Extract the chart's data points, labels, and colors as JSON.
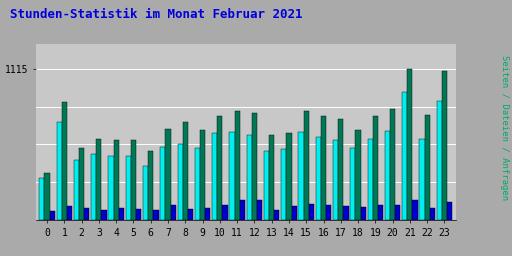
{
  "title": "Stunden-Statistik im Monat Februar 2021",
  "title_color": "#0000dd",
  "ylabel": "Seiten / Dateien / Anfragen",
  "ylabel_color": "#00aa66",
  "xlabel_labels": [
    "0",
    "1",
    "2",
    "3",
    "4",
    "5",
    "6",
    "7",
    "8",
    "9",
    "10",
    "11",
    "12",
    "13",
    "14",
    "15",
    "16",
    "17",
    "18",
    "19",
    "20",
    "21",
    "22",
    "23"
  ],
  "ytick_label": "1115",
  "ylim": [
    0,
    1300
  ],
  "yline": 1115,
  "outer_bg": "#aaaaaa",
  "plot_bg": "#c8c8c8",
  "bar_width": 0.3,
  "color_cyan": "#00eeee",
  "color_green": "#007755",
  "color_blue": "#0000cc",
  "cyan": [
    310,
    720,
    445,
    490,
    470,
    470,
    400,
    540,
    560,
    530,
    640,
    650,
    630,
    510,
    525,
    650,
    610,
    590,
    530,
    600,
    655,
    940,
    600,
    880
  ],
  "green": [
    350,
    870,
    530,
    600,
    590,
    590,
    510,
    670,
    720,
    660,
    770,
    800,
    785,
    625,
    645,
    800,
    765,
    745,
    660,
    765,
    820,
    1115,
    775,
    1095
  ],
  "blue": [
    68,
    105,
    92,
    75,
    90,
    80,
    75,
    115,
    83,
    90,
    108,
    148,
    148,
    78,
    102,
    118,
    110,
    105,
    98,
    108,
    112,
    150,
    93,
    130
  ]
}
